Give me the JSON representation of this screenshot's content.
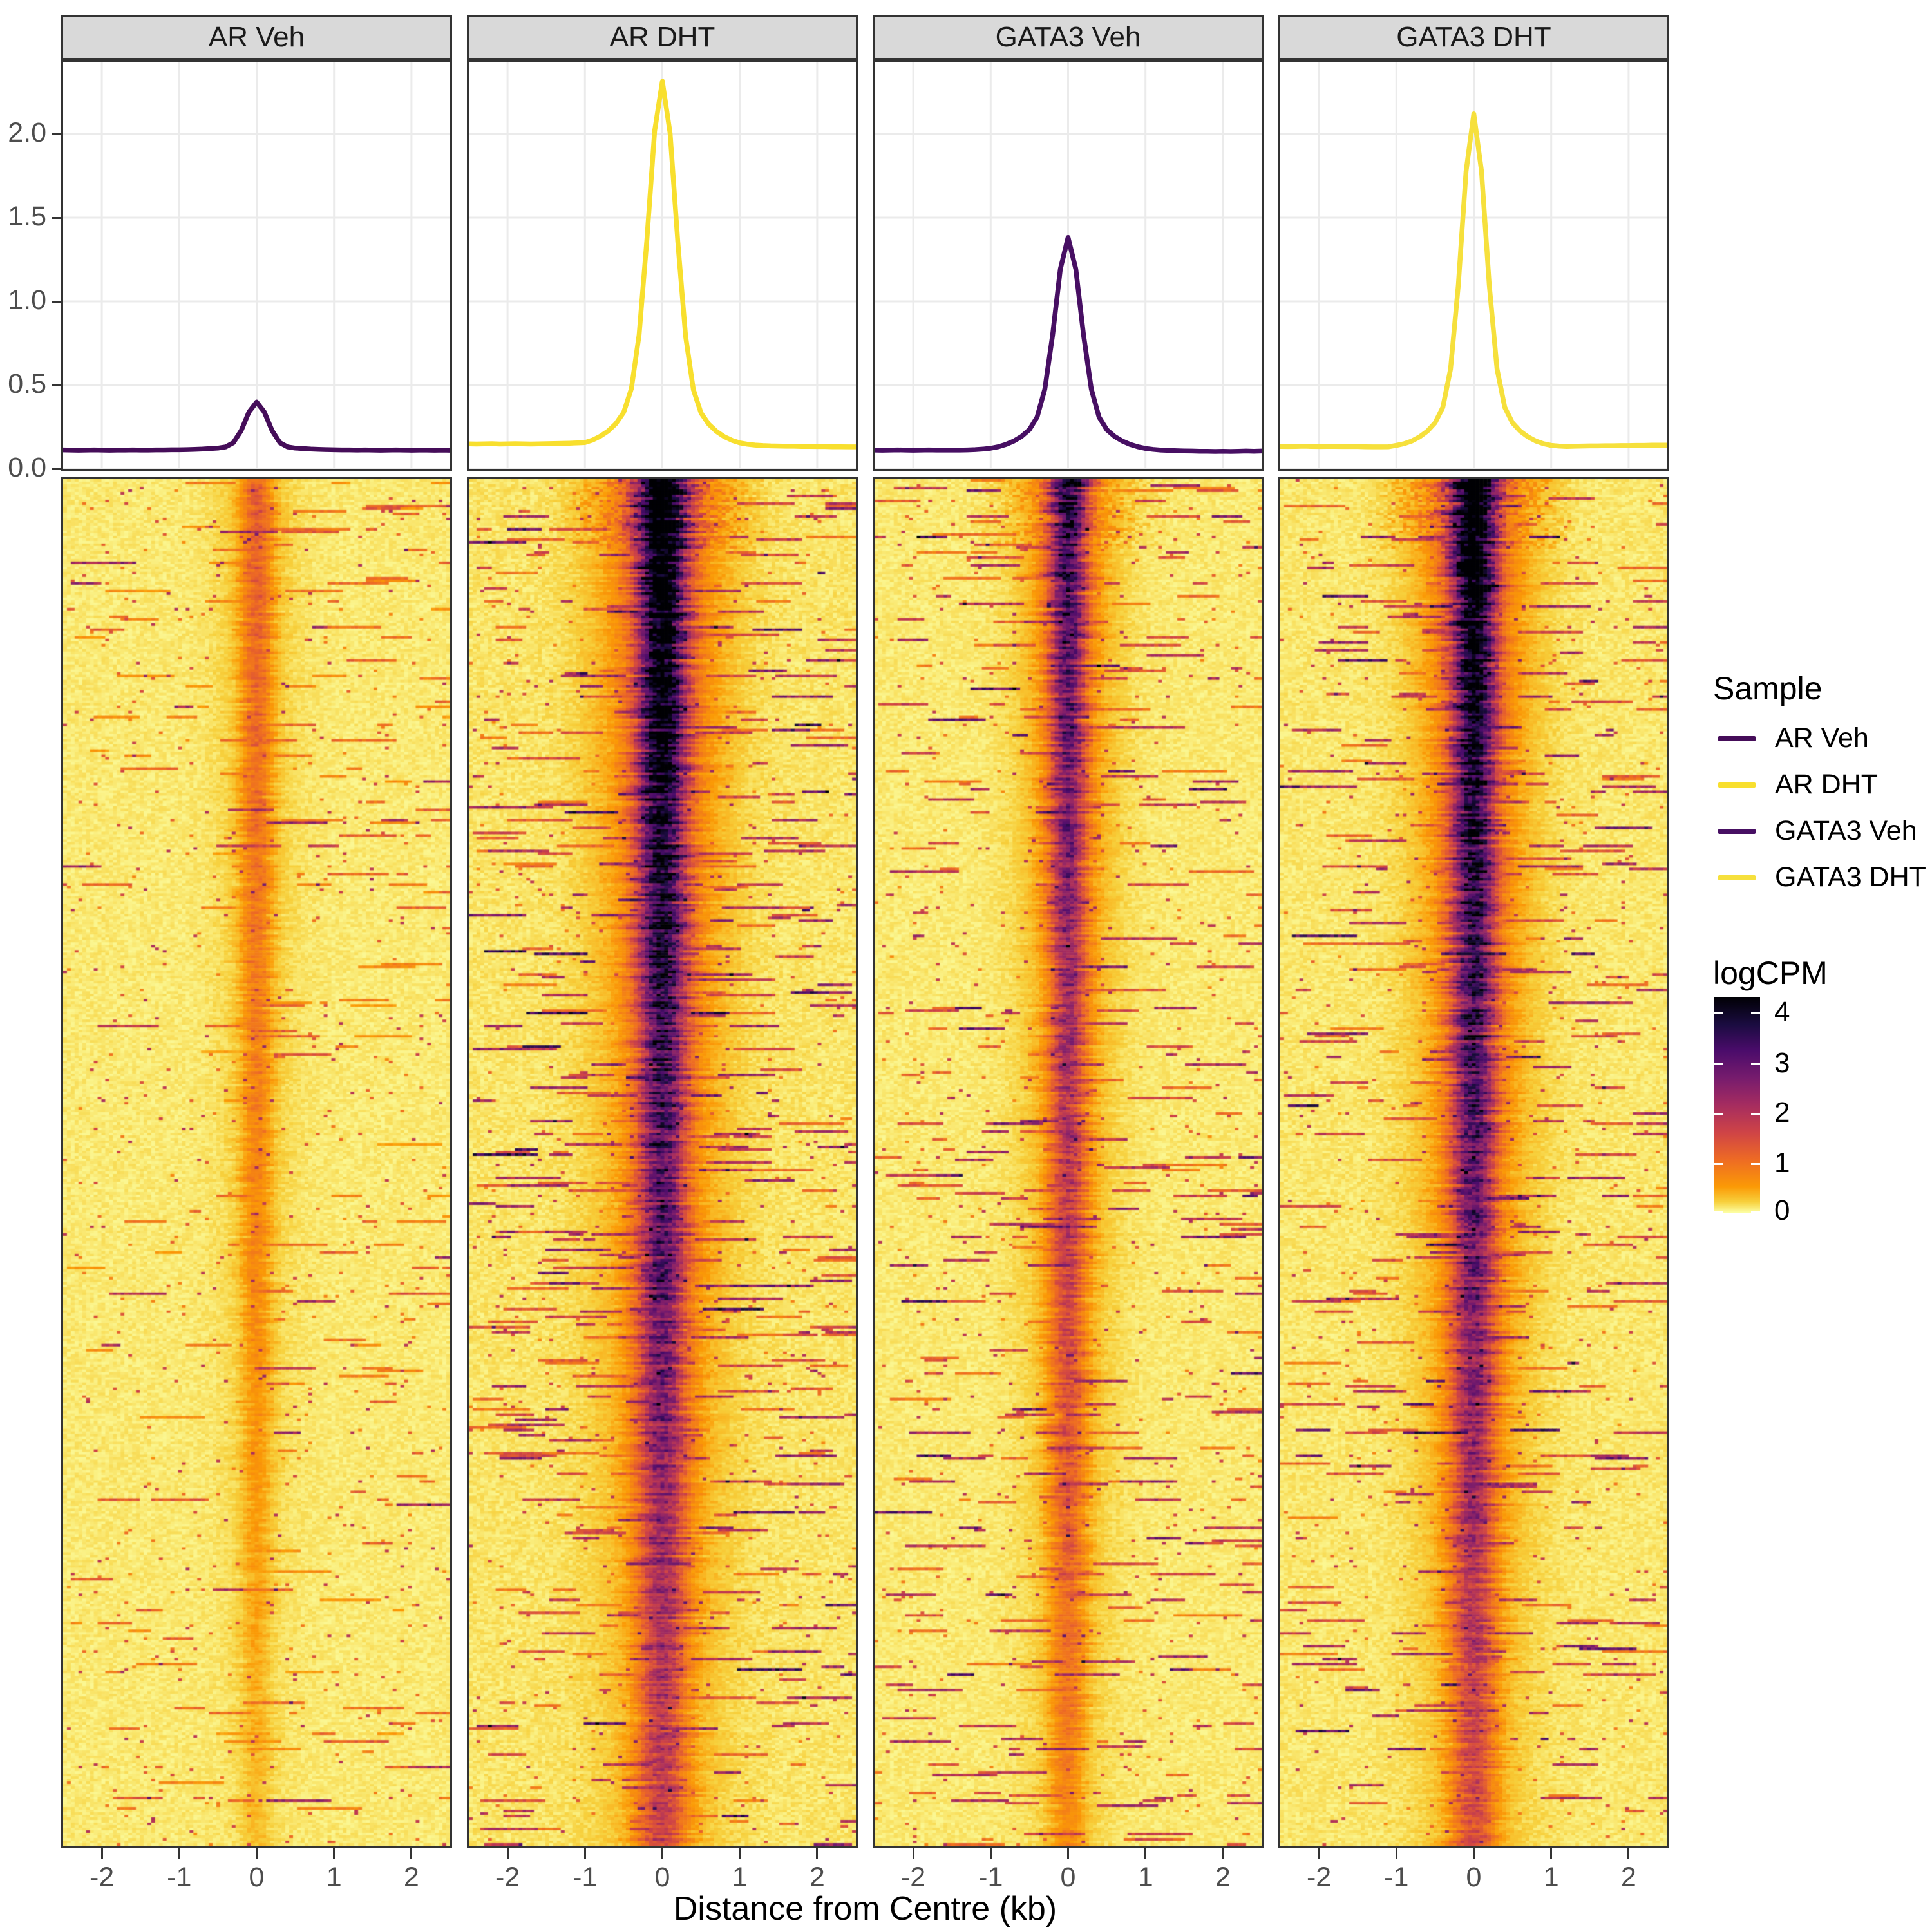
{
  "facets": [
    {
      "title": "AR Veh"
    },
    {
      "title": "AR DHT"
    },
    {
      "title": "GATA3 Veh"
    },
    {
      "title": "GATA3 DHT"
    }
  ],
  "axes": {
    "y_ticks": [
      "2.0",
      "1.5",
      "1.0",
      "0.5",
      "0.0"
    ],
    "x_ticks": [
      "-2",
      "-1",
      "0",
      "1",
      "2"
    ],
    "x_title": "Distance from Centre (kb)"
  },
  "legend": {
    "title": "Sample",
    "items": [
      {
        "label": "AR Veh",
        "color": "#450D59"
      },
      {
        "label": "AR DHT",
        "color": "#F8DF2E"
      },
      {
        "label": "GATA3 Veh",
        "color": "#470F63"
      },
      {
        "label": "GATA3 DHT",
        "color": "#F6E03C"
      }
    ]
  },
  "colorbar": {
    "title": "logCPM",
    "ticks": [
      "4",
      "3",
      "2",
      "1",
      "0"
    ],
    "vmax": 4.32,
    "colormap_stops": [
      [
        0.0,
        "#000004"
      ],
      [
        0.13,
        "#1B0C41"
      ],
      [
        0.25,
        "#4B0C6B"
      ],
      [
        0.38,
        "#781C6D"
      ],
      [
        0.5,
        "#A52C60"
      ],
      [
        0.63,
        "#CF4446"
      ],
      [
        0.75,
        "#ED6925"
      ],
      [
        0.88,
        "#FB9A06"
      ],
      [
        0.95,
        "#F7D03C"
      ],
      [
        1.0,
        "#FCFFA4"
      ]
    ]
  },
  "style": {
    "panel_border": "#333333",
    "strip_bg": "#D9D9D9",
    "grid_color": "#EBEBEB",
    "tick_text": "#4D4D4D"
  },
  "chart_data": {
    "type": "line+heatmap",
    "x_kb": {
      "min": -2.5,
      "max": 2.5,
      "step": 0.1
    },
    "profiles": {
      "ylabel_values": [
        0,
        0.5,
        1.0,
        1.5,
        2.0
      ],
      "ylim": [
        0,
        2.44
      ],
      "series": [
        {
          "name": "AR Veh",
          "color": "#450D59",
          "peak": 0.4,
          "values": [
            0.113,
            0.112,
            0.111,
            0.112,
            0.113,
            0.112,
            0.111,
            0.112,
            0.112,
            0.113,
            0.112,
            0.112,
            0.113,
            0.113,
            0.114,
            0.114,
            0.115,
            0.116,
            0.118,
            0.121,
            0.124,
            0.131,
            0.156,
            0.228,
            0.339,
            0.399,
            0.339,
            0.228,
            0.156,
            0.131,
            0.124,
            0.121,
            0.118,
            0.116,
            0.115,
            0.114,
            0.113,
            0.113,
            0.112,
            0.113,
            0.112,
            0.111,
            0.112,
            0.113,
            0.112,
            0.111,
            0.112,
            0.112,
            0.111,
            0.112,
            0.111
          ]
        },
        {
          "name": "AR DHT",
          "color": "#F8DF2E",
          "peak": 2.32,
          "values": [
            0.149,
            0.148,
            0.149,
            0.15,
            0.148,
            0.149,
            0.15,
            0.149,
            0.148,
            0.149,
            0.15,
            0.151,
            0.152,
            0.153,
            0.155,
            0.157,
            0.172,
            0.195,
            0.226,
            0.27,
            0.337,
            0.479,
            0.8,
            1.37,
            2.018,
            2.315,
            2.005,
            1.355,
            0.792,
            0.474,
            0.333,
            0.266,
            0.223,
            0.192,
            0.17,
            0.155,
            0.147,
            0.142,
            0.139,
            0.137,
            0.136,
            0.135,
            0.135,
            0.134,
            0.134,
            0.133,
            0.133,
            0.132,
            0.132,
            0.131,
            0.131
          ]
        },
        {
          "name": "GATA3 Veh",
          "color": "#470F63",
          "peak": 1.38,
          "values": [
            0.112,
            0.111,
            0.112,
            0.113,
            0.112,
            0.111,
            0.112,
            0.113,
            0.112,
            0.112,
            0.112,
            0.112,
            0.113,
            0.115,
            0.118,
            0.123,
            0.132,
            0.146,
            0.166,
            0.194,
            0.234,
            0.309,
            0.476,
            0.8,
            1.193,
            1.382,
            1.193,
            0.8,
            0.476,
            0.309,
            0.234,
            0.194,
            0.166,
            0.146,
            0.132,
            0.122,
            0.116,
            0.112,
            0.11,
            0.108,
            0.107,
            0.106,
            0.105,
            0.105,
            0.104,
            0.105,
            0.104,
            0.105,
            0.106,
            0.105,
            0.106
          ]
        },
        {
          "name": "GATA3 DHT",
          "color": "#F6E03C",
          "peak": 2.12,
          "values": [
            0.134,
            0.133,
            0.134,
            0.135,
            0.134,
            0.133,
            0.134,
            0.134,
            0.133,
            0.134,
            0.133,
            0.132,
            0.131,
            0.131,
            0.132,
            0.14,
            0.15,
            0.166,
            0.191,
            0.225,
            0.275,
            0.367,
            0.596,
            1.099,
            1.777,
            2.12,
            1.777,
            1.099,
            0.596,
            0.367,
            0.275,
            0.225,
            0.191,
            0.166,
            0.15,
            0.14,
            0.136,
            0.134,
            0.135,
            0.136,
            0.137,
            0.137,
            0.138,
            0.138,
            0.139,
            0.139,
            0.14,
            0.14,
            0.141,
            0.141,
            0.141
          ]
        }
      ]
    },
    "heatmaps": [
      {
        "name": "AR Veh",
        "stripe_center_kb": 0,
        "sigma_kb": 0.13,
        "top_logCPM": 0.95,
        "bottom_logCPM": 0.18,
        "decay": 0.9,
        "background": 0.1,
        "streak_prob": 0.25,
        "streak_range": [
          0.5,
          1.3
        ],
        "top_noise": 0.3
      },
      {
        "name": "AR DHT",
        "stripe_center_kb": 0,
        "sigma_kb": 0.2,
        "top_logCPM": 4.5,
        "bottom_logCPM": 1.25,
        "decay": 0.75,
        "background": 0.12,
        "streak_prob": 0.45,
        "streak_range": [
          0.8,
          2.4
        ],
        "top_noise": 1.1
      },
      {
        "name": "GATA3 Veh",
        "stripe_center_kb": 0,
        "sigma_kb": 0.15,
        "top_logCPM": 3.3,
        "bottom_logCPM": 0.5,
        "decay": 0.6,
        "background": 0.1,
        "streak_prob": 0.35,
        "streak_range": [
          0.8,
          2.2
        ],
        "top_noise": 0.6
      },
      {
        "name": "GATA3 DHT",
        "stripe_center_kb": 0,
        "sigma_kb": 0.18,
        "top_logCPM": 4.2,
        "bottom_logCPM": 1.05,
        "decay": 0.8,
        "background": 0.11,
        "streak_prob": 0.4,
        "streak_range": [
          0.8,
          2.3
        ],
        "top_noise": 1.0
      }
    ]
  }
}
